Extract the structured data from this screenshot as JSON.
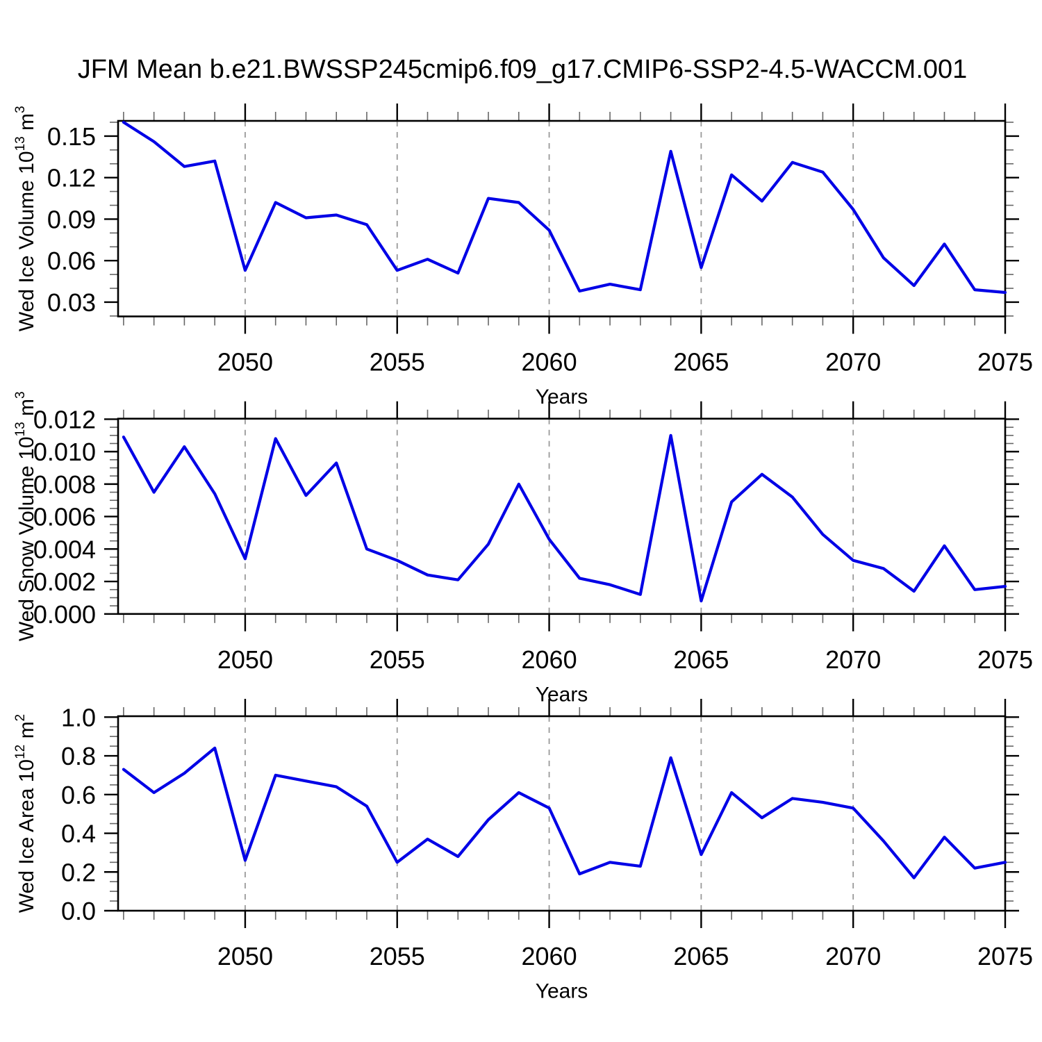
{
  "title": "JFM Mean b.e21.BWSSP245cmip6.f09_g17.CMIP6-SSP2-4.5-WACCM.001",
  "colors": {
    "line": "#0000e6",
    "frame": "#000000",
    "major_tick": "#000000",
    "minor_tick": "#666666",
    "gridline": "#999999",
    "text": "#000000",
    "background": "#ffffff"
  },
  "chart_data": [
    {
      "type": "line",
      "name": "ice-volume",
      "title": "",
      "ylabel": "Wed Ice Volume 10^13 m^3",
      "ylabel_parts": [
        {
          "text": "Wed Ice Volume 10",
          "sup": false
        },
        {
          "text": "13",
          "sup": true
        },
        {
          "text": " m",
          "sup": false
        },
        {
          "text": "3",
          "sup": true
        }
      ],
      "xlabel": "Years",
      "x": [
        2046,
        2047,
        2048,
        2049,
        2050,
        2051,
        2052,
        2053,
        2054,
        2055,
        2056,
        2057,
        2058,
        2059,
        2060,
        2061,
        2062,
        2063,
        2064,
        2065,
        2066,
        2067,
        2068,
        2069,
        2070,
        2071,
        2072,
        2073,
        2074,
        2075
      ],
      "values": [
        0.16,
        0.146,
        0.128,
        0.132,
        0.053,
        0.102,
        0.091,
        0.093,
        0.086,
        0.053,
        0.061,
        0.051,
        0.105,
        0.102,
        0.082,
        0.038,
        0.043,
        0.039,
        0.139,
        0.055,
        0.122,
        0.103,
        0.131,
        0.124,
        0.097,
        0.062,
        0.042,
        0.072,
        0.039,
        0.037
      ],
      "xlim": [
        2045.82,
        2075
      ],
      "ylim": [
        0.0197,
        0.161
      ],
      "xticks": [
        2050,
        2055,
        2060,
        2065,
        2070,
        2075
      ],
      "xtick_labels": [
        "2050",
        "2055",
        "2060",
        "2065",
        "2070",
        "2075"
      ],
      "x_minor_step": 1,
      "yticks": [
        0.03,
        0.06,
        0.09,
        0.12,
        0.15
      ],
      "ytick_labels": [
        "0.03",
        "0.06",
        "0.09",
        "0.12",
        "0.15"
      ],
      "y_minor_step": 0.01,
      "grid_x": [
        2050,
        2055,
        2060,
        2065,
        2070
      ],
      "grid_style": "dashed",
      "legend": "none"
    },
    {
      "type": "line",
      "name": "snow-volume",
      "title": "",
      "ylabel": "Wed Snow Volume 10^13 m^3",
      "ylabel_parts": [
        {
          "text": "Wed Snow Volume 10",
          "sup": false
        },
        {
          "text": "13",
          "sup": true
        },
        {
          "text": " m",
          "sup": false
        },
        {
          "text": "3",
          "sup": true
        }
      ],
      "xlabel": "Years",
      "x": [
        2046,
        2047,
        2048,
        2049,
        2050,
        2051,
        2052,
        2053,
        2054,
        2055,
        2056,
        2057,
        2058,
        2059,
        2060,
        2061,
        2062,
        2063,
        2064,
        2065,
        2066,
        2067,
        2068,
        2069,
        2070,
        2071,
        2072,
        2073,
        2074,
        2075
      ],
      "values": [
        0.0109,
        0.0075,
        0.0103,
        0.0074,
        0.0034,
        0.0108,
        0.0073,
        0.0093,
        0.004,
        0.0033,
        0.0024,
        0.0021,
        0.0043,
        0.008,
        0.0046,
        0.0022,
        0.0018,
        0.0012,
        0.011,
        0.0008,
        0.0069,
        0.0086,
        0.0072,
        0.0049,
        0.0033,
        0.0028,
        0.0014,
        0.0042,
        0.0015,
        0.0017
      ],
      "xlim": [
        2045.82,
        2075
      ],
      "ylim": [
        0,
        0.01203
      ],
      "xticks": [
        2050,
        2055,
        2060,
        2065,
        2070,
        2075
      ],
      "xtick_labels": [
        "2050",
        "2055",
        "2060",
        "2065",
        "2070",
        "2075"
      ],
      "x_minor_step": 1,
      "yticks": [
        0,
        0.002,
        0.004,
        0.006,
        0.008,
        0.01,
        0.012
      ],
      "ytick_labels": [
        "0.000",
        "0.002",
        "0.004",
        "0.006",
        "0.008",
        "0.010",
        "0.012"
      ],
      "y_minor_step": 0.0005,
      "grid_x": [
        2050,
        2055,
        2060,
        2065,
        2070
      ],
      "grid_style": "dashed",
      "legend": "none"
    },
    {
      "type": "line",
      "name": "ice-area",
      "title": "",
      "ylabel": "Wed Ice Area 10^12 m^2",
      "ylabel_parts": [
        {
          "text": "Wed Ice Area 10",
          "sup": false
        },
        {
          "text": "12",
          "sup": true
        },
        {
          "text": " m",
          "sup": false
        },
        {
          "text": "2",
          "sup": true
        }
      ],
      "xlabel": "Years",
      "x": [
        2046,
        2047,
        2048,
        2049,
        2050,
        2051,
        2052,
        2053,
        2054,
        2055,
        2056,
        2057,
        2058,
        2059,
        2060,
        2061,
        2062,
        2063,
        2064,
        2065,
        2066,
        2067,
        2068,
        2069,
        2070,
        2071,
        2072,
        2073,
        2074,
        2075
      ],
      "values": [
        0.73,
        0.61,
        0.71,
        0.84,
        0.26,
        0.7,
        0.67,
        0.64,
        0.54,
        0.25,
        0.37,
        0.28,
        0.47,
        0.61,
        0.53,
        0.19,
        0.25,
        0.23,
        0.79,
        0.29,
        0.61,
        0.48,
        0.58,
        0.56,
        0.53,
        0.36,
        0.17,
        0.38,
        0.22,
        0.25
      ],
      "xlim": [
        2045.82,
        2075
      ],
      "ylim": [
        0,
        1.0047
      ],
      "xticks": [
        2050,
        2055,
        2060,
        2065,
        2070,
        2075
      ],
      "xtick_labels": [
        "2050",
        "2055",
        "2060",
        "2065",
        "2070",
        "2075"
      ],
      "x_minor_step": 1,
      "yticks": [
        0,
        0.2,
        0.4,
        0.6,
        0.8,
        1.0
      ],
      "ytick_labels": [
        "0.0",
        "0.2",
        "0.4",
        "0.6",
        "0.8",
        "1.0"
      ],
      "y_minor_step": 0.05,
      "grid_x": [
        2050,
        2055,
        2060,
        2065,
        2070
      ],
      "grid_style": "dashed",
      "legend": "none"
    }
  ]
}
